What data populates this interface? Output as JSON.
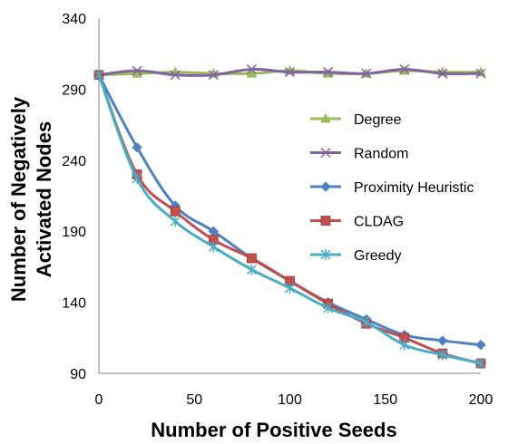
{
  "chart_data": {
    "type": "line",
    "title": "",
    "xlabel": "Number of Positive Seeds",
    "ylabel": [
      "Number of Negatively",
      "Activated Nodes"
    ],
    "xlim": [
      0,
      200
    ],
    "ylim": [
      90,
      340
    ],
    "x_ticks": [
      0,
      50,
      100,
      150,
      200
    ],
    "y_ticks": [
      90,
      140,
      190,
      240,
      290,
      340
    ],
    "grid": false,
    "legend_position": "right",
    "x": [
      0,
      20,
      40,
      60,
      80,
      100,
      120,
      140,
      160,
      180,
      200
    ],
    "series": [
      {
        "name": "Degree",
        "color": "#9BBB59",
        "marker": "triangle",
        "values": [
          300,
          301,
          302,
          301,
          301,
          303,
          301,
          301,
          303,
          302,
          302
        ]
      },
      {
        "name": "Random",
        "color": "#8064A2",
        "marker": "x",
        "values": [
          300,
          303,
          300,
          300,
          304,
          302,
          302,
          301,
          304,
          301,
          301
        ]
      },
      {
        "name": "Proximity Heuristic",
        "color": "#4F81BD",
        "marker": "diamond",
        "values": [
          300,
          249,
          208,
          190,
          171,
          155,
          140,
          128,
          117,
          113,
          110
        ]
      },
      {
        "name": "CLDAG",
        "color": "#C0504D",
        "marker": "square",
        "values": [
          300,
          230,
          204,
          184,
          171,
          155,
          139,
          125,
          115,
          104,
          97
        ]
      },
      {
        "name": "Greedy",
        "color": "#4BACC6",
        "marker": "asterisk",
        "values": [
          300,
          227,
          197,
          179,
          163,
          150,
          136,
          126,
          110,
          103,
          97
        ]
      }
    ]
  }
}
